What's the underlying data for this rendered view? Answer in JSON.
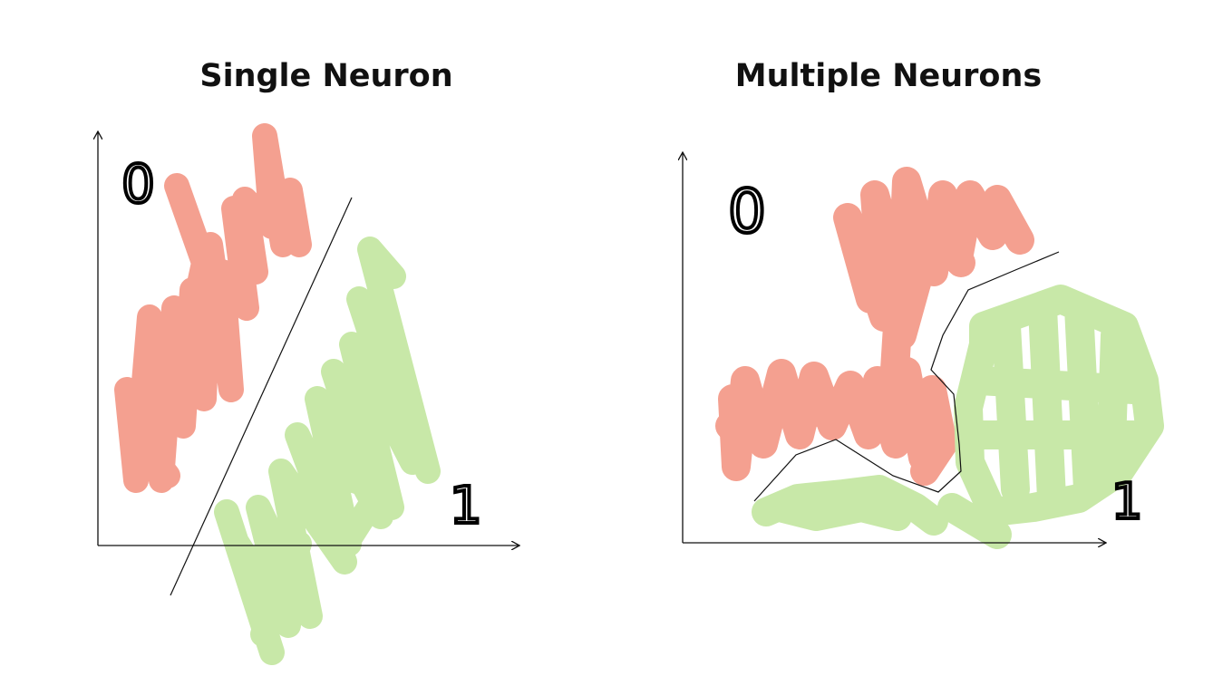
{
  "panels": [
    {
      "title": "Single Neuron",
      "class_labels": [
        "0",
        "1"
      ],
      "boundary": "linear"
    },
    {
      "title": "Multiple Neurons",
      "class_labels": [
        "0",
        "1"
      ],
      "boundary": "non-linear"
    }
  ],
  "colors": {
    "class_0": "#f4a090",
    "class_1": "#c8e8a8",
    "axis": "#111111",
    "boundary": "#111111"
  }
}
